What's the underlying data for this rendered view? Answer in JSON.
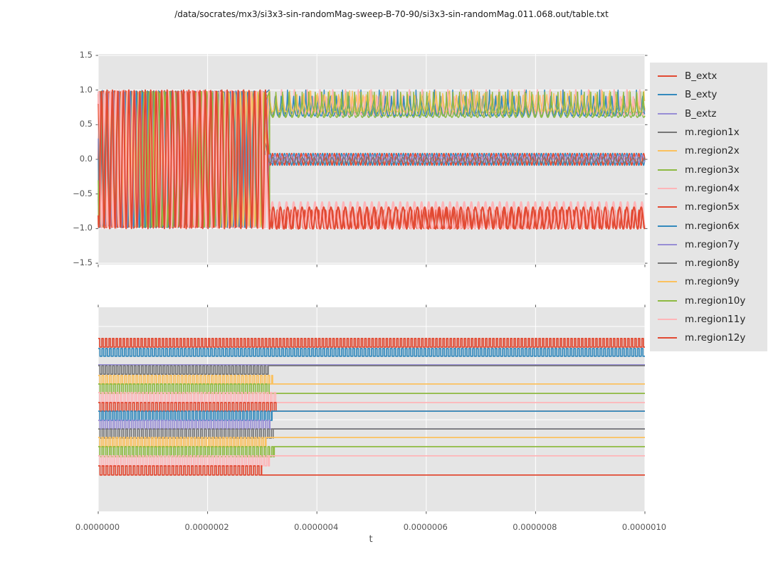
{
  "title": "/data/socrates/mx3/si3x3-sin-randomMag-sweep-B-70-90/si3x3-sin-randomMag.011.068.out/table.txt",
  "palette": {
    "red": "#E24A33",
    "blue": "#348ABD",
    "purple": "#988ED5",
    "gray": "#777777",
    "yellow": "#FBC15E",
    "green": "#8EBA42",
    "pink": "#FFB5B8"
  },
  "colors": {
    "figure_bg": "#ffffff",
    "plot_bg": "#e5e5e5",
    "grid": "#ffffff",
    "tick": "#555555",
    "tick_label": "#555555",
    "legend_bg": "#e5e5e5",
    "title_text": "#1a1a1a"
  },
  "x_axis": {
    "label": "t",
    "tick_values": [
      0,
      0.2,
      0.4,
      0.6,
      0.8,
      1.0
    ],
    "tick_labels": [
      "0.0000000",
      "0.0000002",
      "0.0000004",
      "0.0000006",
      "0.0000008",
      "0.0000010"
    ],
    "note": "t axis spans 0 to 1e-6 seconds; tick_values are fractions of 1e-6 s"
  },
  "legend": {
    "items": [
      {
        "label": "B_extx",
        "color": "red"
      },
      {
        "label": "B_exty",
        "color": "blue"
      },
      {
        "label": "B_extz",
        "color": "purple"
      },
      {
        "label": "m.region1x",
        "color": "gray"
      },
      {
        "label": "m.region2x",
        "color": "yellow"
      },
      {
        "label": "m.region3x",
        "color": "green"
      },
      {
        "label": "m.region4x",
        "color": "pink"
      },
      {
        "label": "m.region5x",
        "color": "red"
      },
      {
        "label": "m.region6x",
        "color": "blue"
      },
      {
        "label": "m.region7y",
        "color": "purple"
      },
      {
        "label": "m.region8y",
        "color": "gray"
      },
      {
        "label": "m.region9y",
        "color": "yellow"
      },
      {
        "label": "m.region10y",
        "color": "green"
      },
      {
        "label": "m.region11y",
        "color": "pink"
      },
      {
        "label": "m.region12y",
        "color": "red"
      }
    ]
  },
  "chart_data": [
    {
      "id": "top",
      "type": "line",
      "xlim": [
        0,
        1.0
      ],
      "ylim": [
        -1.52,
        1.52
      ],
      "ytick_values": [
        1.5,
        1.0,
        0.5,
        0.0,
        -0.5,
        -1.0,
        -1.5
      ],
      "ytick_labels": [
        "1.5",
        "1.0",
        "0.5",
        "0.0",
        "−0.5",
        "−1.0",
        "−1.5"
      ],
      "grid": true,
      "description": "All signals oscillate between -1 and 1 until t≈3.1e-7 s, then settle into three bands: top scallops 0.63..1.0, small ripple around 0, red band -1.0..-0.7",
      "series": [
        {
          "name": "B_extx",
          "color": "red",
          "width": 1.8,
          "segments": [
            {
              "kind": "sine",
              "t0": 0,
              "t1": 0.3065,
              "offset": 0,
              "amp": 1.0,
              "period": 0.0098,
              "phase": 0
            },
            {
              "kind": "sine",
              "t0": 0.3135,
              "t1": 1.0,
              "offset": -0.865,
              "amp": 0.135,
              "period": 0.0063,
              "phase": 0
            }
          ]
        },
        {
          "name": "B_exty",
          "color": "blue",
          "width": 1.5,
          "segments": [
            {
              "kind": "sine",
              "t0": 0,
              "t1": 0.306,
              "offset": 0,
              "amp": 0.995,
              "period": 0.0103,
              "phase": 0.5
            },
            {
              "kind": "sine",
              "t0": 0.3125,
              "t1": 1.0,
              "offset": 0,
              "amp": 0.088,
              "period": 0.0087,
              "phase": 0
            }
          ]
        },
        {
          "name": "B_extz",
          "color": "purple",
          "width": 1.6,
          "segments": [
            {
              "kind": "sine",
              "t0": 0,
              "t1": 0.3055,
              "offset": 0,
              "amp": 0.98,
              "period": 0.0108,
              "phase": 0.25
            },
            {
              "kind": "flat",
              "t0": 0.3125,
              "t1": 1.0,
              "y": 0.004
            }
          ]
        },
        {
          "name": "m.region1x",
          "color": "gray",
          "width": 1.4,
          "segments": [
            {
              "kind": "sine",
              "t0": 0,
              "t1": 0.305,
              "offset": 0,
              "amp": 0.97,
              "period": 0.0095,
              "phase": 0.6
            },
            {
              "kind": "scallop",
              "t0": 0.312,
              "t1": 1.0,
              "base": 0.965,
              "depth": 0.295,
              "period": 0.0117,
              "power": 0.55
            }
          ]
        },
        {
          "name": "m.region2x",
          "color": "yellow",
          "width": 1.4,
          "segments": [
            {
              "kind": "sine",
              "t0": 0,
              "t1": 0.305,
              "offset": 0,
              "amp": 0.98,
              "period": 0.01,
              "phase": 0.1
            },
            {
              "kind": "scallop",
              "t0": 0.3135,
              "t1": 1.0,
              "base": 0.99,
              "depth": 0.315,
              "period": 0.0122,
              "power": 0.55
            }
          ]
        },
        {
          "name": "m.region3x",
          "color": "green",
          "width": 1.5,
          "segments": [
            {
              "kind": "sine",
              "t0": 0,
              "t1": 0.3055,
              "offset": 0,
              "amp": 0.985,
              "period": 0.0105,
              "phase": 0.8
            },
            {
              "kind": "vline",
              "t": 0.3135,
              "y0": 0.955,
              "y1": -0.775
            },
            {
              "kind": "scallop",
              "t0": 0.3135,
              "t1": 1.0,
              "base": 0.975,
              "depth": 0.37,
              "period": 0.0117,
              "power": 0.5
            }
          ]
        },
        {
          "name": "m.region4x",
          "color": "pink",
          "width": 2.2,
          "segments": [
            {
              "kind": "sine",
              "t0": 0,
              "t1": 0.306,
              "offset": 0,
              "amp": 0.99,
              "period": 0.0097,
              "phase": 0.35
            },
            {
              "kind": "scallop",
              "t0": 0.312,
              "t1": 1.0,
              "base": 1.0,
              "depth": 0.355,
              "period": 0.0117,
              "power": 0.5
            }
          ]
        },
        {
          "name": "m.region5x",
          "color": "red",
          "width": 1.7,
          "segments": [
            {
              "kind": "sine",
              "t0": 0,
              "t1": 0.306,
              "offset": 0,
              "amp": 0.99,
              "period": 0.0102,
              "phase": 0.3
            },
            {
              "kind": "sine",
              "t0": 0.3125,
              "t1": 1.0,
              "offset": 0,
              "amp": 0.085,
              "period": 0.0087,
              "phase": 0.5
            }
          ]
        },
        {
          "name": "m.region6x",
          "color": "blue",
          "width": 1.5,
          "segments": [
            {
              "kind": "sine",
              "t0": 0,
              "t1": 0.306,
              "offset": 0,
              "amp": 0.985,
              "period": 0.0107,
              "phase": 0.7
            },
            {
              "kind": "scallop",
              "t0": 0.3125,
              "t1": 1.0,
              "base": 1.0,
              "depth": 0.375,
              "period": 0.0112,
              "power": 0.5
            }
          ]
        },
        {
          "name": "m.region7y",
          "color": "purple",
          "width": 1.5,
          "segments": [
            {
              "kind": "sine",
              "t0": 0,
              "t1": 0.3055,
              "offset": 0,
              "amp": 0.975,
              "period": 0.0099,
              "phase": 0.45
            },
            {
              "kind": "vline",
              "t": 0.3095,
              "y0": 0.91,
              "y1": -0.565
            },
            {
              "kind": "sine",
              "t0": 0.3125,
              "t1": 1.0,
              "offset": 0.01,
              "amp": 0.055,
              "period": 0.0105,
              "phase": 0.25
            }
          ]
        },
        {
          "name": "m.region8y",
          "color": "gray",
          "width": 1.4,
          "segments": [
            {
              "kind": "sine",
              "t0": 0,
              "t1": 0.305,
              "offset": 0,
              "amp": 0.965,
              "period": 0.0101,
              "phase": 0.9
            },
            {
              "kind": "sine",
              "t0": 0.3125,
              "t1": 1.0,
              "offset": -0.012,
              "amp": 0.04,
              "period": 0.0108,
              "phase": 0.6
            }
          ]
        },
        {
          "name": "m.region9y",
          "color": "yellow",
          "width": 1.4,
          "segments": [
            {
              "kind": "sine",
              "t0": 0,
              "t1": 0.305,
              "offset": 0,
              "amp": 0.975,
              "period": 0.0104,
              "phase": 0.2
            },
            {
              "kind": "scallop",
              "t0": 0.3125,
              "t1": 1.0,
              "base": 0.985,
              "depth": 0.3,
              "period": 0.0127,
              "power": 0.6
            }
          ]
        },
        {
          "name": "m.region10y",
          "color": "green",
          "width": 1.5,
          "segments": [
            {
              "kind": "sine",
              "t0": 0,
              "t1": 0.3055,
              "offset": 0,
              "amp": 0.98,
              "period": 0.0096,
              "phase": 0.55
            },
            {
              "kind": "scallop",
              "t0": 0.313,
              "t1": 1.0,
              "base": 0.97,
              "depth": 0.345,
              "period": 0.012,
              "power": 0.5
            }
          ]
        },
        {
          "name": "m.region11y",
          "color": "pink",
          "width": 2.2,
          "segments": [
            {
              "kind": "sine",
              "t0": 0,
              "t1": 0.306,
              "offset": 0,
              "amp": 0.99,
              "period": 0.0106,
              "phase": 0.15
            },
            {
              "kind": "spike",
              "t0": 0.312,
              "t1": 1.0,
              "base": -1.0,
              "height": 0.385,
              "period": 0.013,
              "power": 2.6
            }
          ]
        },
        {
          "name": "m.region12y",
          "color": "red",
          "width": 2.0,
          "segments": [
            {
              "kind": "sine",
              "t0": 0,
              "t1": 0.307,
              "offset": 0,
              "amp": 1.0,
              "period": 0.01,
              "phase": 0.65
            },
            {
              "kind": "spike",
              "t0": 0.3135,
              "t1": 1.0,
              "base": -1.005,
              "height": 0.315,
              "period": 0.0132,
              "power": 2.0
            }
          ]
        }
      ]
    },
    {
      "id": "bottom",
      "type": "line",
      "xlim": [
        0,
        1.0
      ],
      "ylim": [
        0,
        1
      ],
      "ytick_values": [],
      "ytick_labels": [],
      "grid_y_values": [
        0.906,
        0.449
      ],
      "description": "Stacked square-wave traces; B_extx and B_exty toggle for the whole run, B_extz is flat, all m.region traces stop toggling near t≈3.1e-7 s and settle to a constant level",
      "series": [
        {
          "name": "B_extx",
          "color": "red",
          "width": 1.7,
          "segments": [
            {
              "kind": "square",
              "t0": 0,
              "t1": 1.0,
              "hi": 0.847,
              "lo": 0.805,
              "period": 0.0065,
              "duty": 0.42
            }
          ]
        },
        {
          "name": "B_exty",
          "color": "blue",
          "width": 1.7,
          "segments": [
            {
              "kind": "square",
              "t0": 0,
              "t1": 1.0,
              "hi": 0.798,
              "lo": 0.76,
              "period": 0.00685,
              "duty": 0.46
            }
          ]
        },
        {
          "name": "B_extz",
          "color": "purple",
          "width": 1.7,
          "segments": [
            {
              "kind": "flat",
              "t0": 0,
              "t1": 1.0,
              "y": 0.718
            }
          ]
        },
        {
          "name": "m.region1x",
          "color": "gray",
          "width": 1.7,
          "segments": [
            {
              "kind": "square",
              "t0": 0,
              "t1": 0.311,
              "hi": 0.714,
              "lo": 0.672,
              "period": 0.0066,
              "duty": 0.47
            },
            {
              "kind": "flat",
              "t0": 0.311,
              "t1": 1.0,
              "y": 0.714
            }
          ]
        },
        {
          "name": "m.region2x",
          "color": "yellow",
          "width": 1.7,
          "segments": [
            {
              "kind": "square",
              "t0": 0,
              "t1": 0.319,
              "hi": 0.666,
              "lo": 0.624,
              "period": 0.0069,
              "duty": 0.45
            },
            {
              "kind": "flat",
              "t0": 0.319,
              "t1": 1.0,
              "y": 0.624
            }
          ]
        },
        {
          "name": "m.region3x",
          "color": "green",
          "width": 1.7,
          "segments": [
            {
              "kind": "square",
              "t0": 0,
              "t1": 0.3125,
              "hi": 0.624,
              "lo": 0.578,
              "period": 0.0071,
              "duty": 0.48
            },
            {
              "kind": "flat",
              "t0": 0.3125,
              "t1": 1.0,
              "y": 0.578
            }
          ]
        },
        {
          "name": "m.region4x",
          "color": "pink",
          "width": 1.7,
          "segments": [
            {
              "kind": "square",
              "t0": 0,
              "t1": 0.326,
              "hi": 0.582,
              "lo": 0.533,
              "period": 0.0067,
              "duty": 0.44
            },
            {
              "kind": "flat",
              "t0": 0.326,
              "t1": 1.0,
              "y": 0.533
            }
          ]
        },
        {
          "name": "m.region5x",
          "color": "red",
          "width": 1.7,
          "segments": [
            {
              "kind": "square",
              "t0": 0,
              "t1": 0.327,
              "hi": 0.533,
              "lo": 0.491,
              "period": 0.007,
              "duty": 0.46
            },
            {
              "kind": "flat",
              "t0": 0.327,
              "t1": 1.0,
              "y": 0.491
            }
          ]
        },
        {
          "name": "m.region6x",
          "color": "blue",
          "width": 1.7,
          "segments": [
            {
              "kind": "square",
              "t0": 0,
              "t1": 0.318,
              "hi": 0.491,
              "lo": 0.446,
              "period": 0.0066,
              "duty": 0.45
            },
            {
              "kind": "flat",
              "t0": 0.318,
              "t1": 1.0,
              "y": 0.491
            }
          ]
        },
        {
          "name": "m.region7y",
          "color": "purple",
          "width": 1.7,
          "segments": [
            {
              "kind": "square",
              "t0": 0,
              "t1": 0.314,
              "hi": 0.446,
              "lo": 0.404,
              "period": 0.0068,
              "duty": 0.47
            },
            {
              "kind": "flat",
              "t0": 0.314,
              "t1": 1.0,
              "y": 0.404
            }
          ]
        },
        {
          "name": "m.region8y",
          "color": "gray",
          "width": 1.7,
          "segments": [
            {
              "kind": "square",
              "t0": 0,
              "t1": 0.32,
              "hi": 0.404,
              "lo": 0.359,
              "period": 0.0072,
              "duty": 0.45
            },
            {
              "kind": "flat",
              "t0": 0.32,
              "t1": 1.0,
              "y": 0.404
            }
          ]
        },
        {
          "name": "m.region9y",
          "color": "yellow",
          "width": 1.7,
          "segments": [
            {
              "kind": "square",
              "t0": 0,
              "t1": 0.307,
              "hi": 0.362,
              "lo": 0.317,
              "period": 0.0065,
              "duty": 0.46
            },
            {
              "kind": "flat",
              "t0": 0.307,
              "t1": 1.0,
              "y": 0.362
            }
          ]
        },
        {
          "name": "m.region10y",
          "color": "green",
          "width": 1.7,
          "segments": [
            {
              "kind": "square",
              "t0": 0,
              "t1": 0.322,
              "hi": 0.317,
              "lo": 0.268,
              "period": 0.0069,
              "duty": 0.44
            },
            {
              "kind": "flat",
              "t0": 0.322,
              "t1": 1.0,
              "y": 0.317
            }
          ]
        },
        {
          "name": "m.region11y",
          "color": "pink",
          "width": 1.7,
          "segments": [
            {
              "kind": "square",
              "t0": 0,
              "t1": 0.313,
              "hi": 0.272,
              "lo": 0.223,
              "period": 0.0067,
              "duty": 0.47
            },
            {
              "kind": "flat",
              "t0": 0.313,
              "t1": 1.0,
              "y": 0.272
            }
          ]
        },
        {
          "name": "m.region12y",
          "color": "red",
          "width": 1.7,
          "segments": [
            {
              "kind": "square",
              "t0": 0,
              "t1": 0.299,
              "hi": 0.223,
              "lo": 0.178,
              "period": 0.0071,
              "duty": 0.45
            },
            {
              "kind": "flat",
              "t0": 0.299,
              "t1": 1.0,
              "y": 0.178
            }
          ]
        }
      ]
    }
  ]
}
